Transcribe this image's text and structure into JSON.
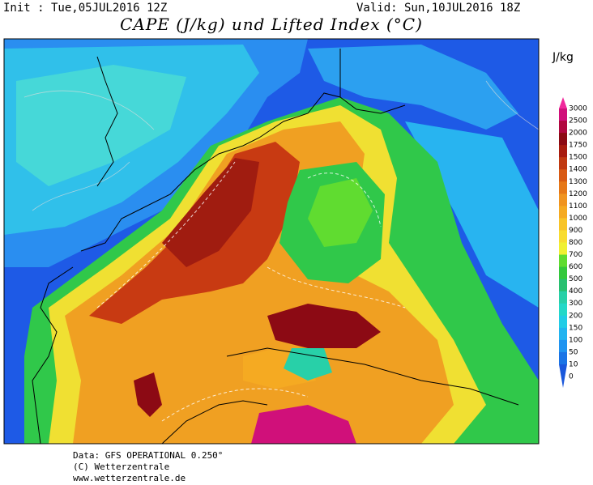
{
  "header": {
    "init": "Init : Tue,05JUL2016 12Z",
    "valid": "Valid: Sun,10JUL2016 18Z",
    "title": "CAPE (J/kg) und Lifted Index (°C)"
  },
  "colorbar": {
    "unit": "J/kg",
    "levels": [
      {
        "label": "3000",
        "color": "#f0289c"
      },
      {
        "label": "2500",
        "color": "#d0107a"
      },
      {
        "label": "2000",
        "color": "#b00840"
      },
      {
        "label": "1750",
        "color": "#8c0a14"
      },
      {
        "label": "1500",
        "color": "#a81c10"
      },
      {
        "label": "1400",
        "color": "#c03a12"
      },
      {
        "label": "1300",
        "color": "#d85a14"
      },
      {
        "label": "1200",
        "color": "#e67818"
      },
      {
        "label": "1100",
        "color": "#f09420"
      },
      {
        "label": "1000",
        "color": "#f5aa22"
      },
      {
        "label": "900",
        "color": "#f8c428"
      },
      {
        "label": "800",
        "color": "#f8dc30"
      },
      {
        "label": "700",
        "color": "#f0f032"
      },
      {
        "label": "600",
        "color": "#60dc30"
      },
      {
        "label": "500",
        "color": "#34c83c"
      },
      {
        "label": "400",
        "color": "#28c070"
      },
      {
        "label": "300",
        "color": "#28d0a8"
      },
      {
        "label": "200",
        "color": "#24d8c8"
      },
      {
        "label": "150",
        "color": "#22cce6"
      },
      {
        "label": "100",
        "color": "#22b4f0"
      },
      {
        "label": "50",
        "color": "#2094f0"
      },
      {
        "label": "10",
        "color": "#1a74e6"
      },
      {
        "label": "0",
        "color": "#1a58dc"
      }
    ]
  },
  "footer": {
    "lines": [
      "Data: GFS OPERATIONAL 0.250°",
      "(C) Wetterzentrale",
      "www.wetterzentrale.de"
    ]
  }
}
